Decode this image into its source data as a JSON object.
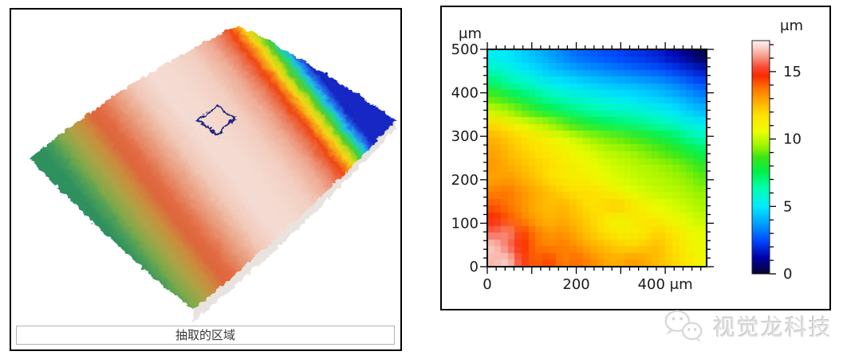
{
  "left_panel": {
    "caption": "抽取的区域"
  },
  "watermark": {
    "text": "视觉龙科技",
    "icon": "chat-bubbles-icon"
  },
  "chart_data": [
    {
      "type": "surface_3d",
      "caption": "抽取的区域",
      "colormap_description": "rainbow height bands: dark blue lowest along top-right edge, through cyan-green-yellow-orange to red stripe, pale pink-white high center plateau, second red-orange stripe, olive then green lowest toward bottom-left edge",
      "selection_marker": "diamond-outline",
      "height_band_colors": [
        [
          0.0,
          "#0d22c8"
        ],
        [
          0.022,
          "#1e6cf2"
        ],
        [
          0.04,
          "#18c0f0"
        ],
        [
          0.058,
          "#20d981"
        ],
        [
          0.076,
          "#52cf28"
        ],
        [
          0.095,
          "#c8e312"
        ],
        [
          0.113,
          "#f8d70e"
        ],
        [
          0.135,
          "#fa9110"
        ],
        [
          0.16,
          "#f4430e"
        ],
        [
          0.2,
          "#ee7a58"
        ],
        [
          0.25,
          "#f2ad96"
        ],
        [
          0.33,
          "#f6d2c4"
        ],
        [
          0.42,
          "#f8ded4"
        ],
        [
          0.5,
          "#f8e0d8"
        ],
        [
          0.58,
          "#f5cdbc"
        ],
        [
          0.66,
          "#ec9d7c"
        ],
        [
          0.73,
          "#e56a40"
        ],
        [
          0.77,
          "#e06438"
        ],
        [
          0.82,
          "#cd8d3a"
        ],
        [
          0.87,
          "#ada442"
        ],
        [
          0.92,
          "#7cab48"
        ],
        [
          0.96,
          "#45a056"
        ],
        [
          1.0,
          "#27915c"
        ]
      ]
    },
    {
      "type": "heatmap",
      "x_axis_unit": "μm",
      "y_axis_unit": "μm",
      "xlim": [
        0,
        493
      ],
      "ylim": [
        0,
        500
      ],
      "x_major_tick_step": 100,
      "x_minor_tick_step": 20,
      "y_major_tick_step": 100,
      "y_minor_tick_step": 20,
      "x_tick_labels": [
        {
          "value": 0,
          "label": "0"
        },
        {
          "value": 200,
          "label": "200"
        },
        {
          "value": 400,
          "label": "400 μm"
        }
      ],
      "y_tick_labels": [
        {
          "value": 0,
          "label": "0"
        },
        {
          "value": 100,
          "label": "100"
        },
        {
          "value": 200,
          "label": "200"
        },
        {
          "value": 300,
          "label": "300"
        },
        {
          "value": 400,
          "label": "400"
        },
        {
          "value": 500,
          "label": "500"
        }
      ],
      "colorbar": {
        "unit": "μm",
        "min": 0,
        "max": 17.3,
        "major_tick_step": 5,
        "minor_tick_step": 1,
        "tick_labels": [
          {
            "value": 0,
            "label": "0"
          },
          {
            "value": 5,
            "label": "5"
          },
          {
            "value": 10,
            "label": "10"
          },
          {
            "value": 15,
            "label": "15"
          }
        ],
        "stops": [
          [
            0.0,
            5,
            5,
            45
          ],
          [
            0.07,
            0,
            0,
            170
          ],
          [
            0.14,
            0,
            70,
            255
          ],
          [
            0.22,
            0,
            165,
            255
          ],
          [
            0.29,
            0,
            235,
            255
          ],
          [
            0.37,
            0,
            255,
            170
          ],
          [
            0.44,
            0,
            240,
            70
          ],
          [
            0.5,
            60,
            230,
            20
          ],
          [
            0.55,
            160,
            245,
            0
          ],
          [
            0.61,
            235,
            255,
            0
          ],
          [
            0.68,
            255,
            225,
            0
          ],
          [
            0.74,
            255,
            170,
            0
          ],
          [
            0.8,
            255,
            110,
            0
          ],
          [
            0.85,
            250,
            40,
            0
          ],
          [
            0.89,
            248,
            80,
            60
          ],
          [
            0.93,
            248,
            150,
            130
          ],
          [
            0.97,
            250,
            208,
            202
          ],
          [
            1.0,
            253,
            240,
            240
          ]
        ]
      },
      "grid_rows_top_to_bottom": true,
      "values_um": [
        [
          5.2,
          5.0,
          4.6,
          4.2,
          3.8,
          3.4,
          3.0,
          2.8,
          2.6,
          2.4,
          2.2,
          2.0,
          1.8,
          1.4,
          1.0,
          0.4
        ],
        [
          6.0,
          5.6,
          5.2,
          4.8,
          4.4,
          4.1,
          3.8,
          3.6,
          3.4,
          3.2,
          3.0,
          2.8,
          2.6,
          2.3,
          2.0,
          1.6
        ],
        [
          7.2,
          6.6,
          6.1,
          5.7,
          5.3,
          5.0,
          4.8,
          4.6,
          4.4,
          4.2,
          4.1,
          3.9,
          3.7,
          3.4,
          3.0,
          2.6
        ],
        [
          8.8,
          8.1,
          7.4,
          6.9,
          6.4,
          6.0,
          5.7,
          5.5,
          5.3,
          5.1,
          4.9,
          4.7,
          4.5,
          4.2,
          3.8,
          3.4
        ],
        [
          10.1,
          9.6,
          9.0,
          8.3,
          7.7,
          7.2,
          6.8,
          6.5,
          6.2,
          6.0,
          5.8,
          5.6,
          5.3,
          5.0,
          4.6,
          4.2
        ],
        [
          11.8,
          11.2,
          10.6,
          10.1,
          9.6,
          9.0,
          8.4,
          7.9,
          7.5,
          7.2,
          7.0,
          6.7,
          6.4,
          6.0,
          5.6,
          5.2
        ],
        [
          12.6,
          12.2,
          11.8,
          11.4,
          11.0,
          10.5,
          10.0,
          9.5,
          9.2,
          9.0,
          8.7,
          8.3,
          7.9,
          7.4,
          6.8,
          6.2
        ],
        [
          12.9,
          12.5,
          12.1,
          11.8,
          11.5,
          11.1,
          10.7,
          10.3,
          9.9,
          9.7,
          9.5,
          9.2,
          8.9,
          8.5,
          8.0,
          7.4
        ],
        [
          13.1,
          12.7,
          12.4,
          12.1,
          11.8,
          11.4,
          11.1,
          10.7,
          10.3,
          10.1,
          9.9,
          9.7,
          9.5,
          9.3,
          9.0,
          8.4
        ],
        [
          12.9,
          13.1,
          12.7,
          12.3,
          11.8,
          11.4,
          11.3,
          11.1,
          10.7,
          10.3,
          10.1,
          9.9,
          9.8,
          9.6,
          9.4,
          9.0
        ],
        [
          13.5,
          13.7,
          13.2,
          12.8,
          12.4,
          12.0,
          11.7,
          11.8,
          11.4,
          11.0,
          10.5,
          10.2,
          10.0,
          9.9,
          9.7,
          9.4
        ],
        [
          14.1,
          13.7,
          13.2,
          12.7,
          12.4,
          12.6,
          12.2,
          11.7,
          11.9,
          12.1,
          11.6,
          11.0,
          10.6,
          10.3,
          10.0,
          9.7
        ],
        [
          14.7,
          14.2,
          13.5,
          12.9,
          12.6,
          12.8,
          12.4,
          12.0,
          11.5,
          11.0,
          11.3,
          11.6,
          11.2,
          10.8,
          10.4,
          10.0
        ],
        [
          15.6,
          16.0,
          14.5,
          13.6,
          13.1,
          13.2,
          12.8,
          12.2,
          11.7,
          11.3,
          11.1,
          11.5,
          12.0,
          11.6,
          11.0,
          10.5
        ],
        [
          16.7,
          15.7,
          14.7,
          13.8,
          13.4,
          13.6,
          13.2,
          12.7,
          12.4,
          12.1,
          11.9,
          12.2,
          12.4,
          11.8,
          11.2,
          10.7
        ],
        [
          16.5,
          16.8,
          15.0,
          14.0,
          14.4,
          13.5,
          13.9,
          13.4,
          12.9,
          12.7,
          13.1,
          12.8,
          12.4,
          12.0,
          11.5,
          10.9
        ]
      ]
    }
  ]
}
